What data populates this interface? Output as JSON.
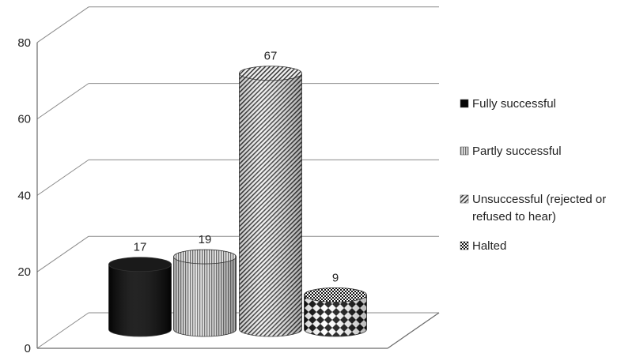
{
  "chart_data": {
    "type": "bar",
    "style": "3d-cylinder",
    "categories": [
      "Fully successful",
      "Partly successful",
      "Unsuccessful (rejected or refused to hear)",
      "Halted"
    ],
    "values": [
      17,
      19,
      67,
      9
    ],
    "data_labels": [
      "17",
      "19",
      "67",
      "9"
    ],
    "yticks": [
      "0",
      "20",
      "40",
      "60",
      "80"
    ],
    "ylim": [
      0,
      80
    ],
    "grid": true,
    "legend_position": "right",
    "legend": [
      {
        "label": "Fully successful",
        "pattern": "solid-black"
      },
      {
        "label": "Partly successful",
        "pattern": "vertical-stripes"
      },
      {
        "label": "Unsuccessful (rejected or\nrefused to hear)",
        "pattern": "diagonal-stripes"
      },
      {
        "label": "Halted",
        "pattern": "checker"
      }
    ]
  }
}
